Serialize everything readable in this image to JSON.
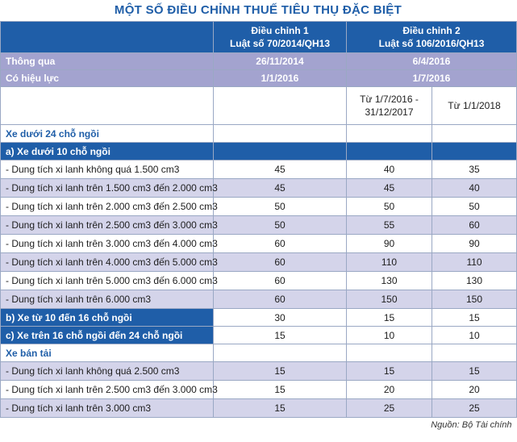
{
  "title": "MỘT SỐ ĐIỀU CHỈNH THUẾ TIÊU THỤ ĐẶC BIỆT",
  "header": {
    "adj1_line1": "Điều chỉnh 1",
    "adj1_line2": "Luật số 70/2014/QH13",
    "adj2_line1": "Điều chỉnh 2",
    "adj2_line2": "Luật số 106/2016/QH13"
  },
  "meta": [
    {
      "label": "Thông qua",
      "adj1": "26/11/2014",
      "adj2": "6/4/2016"
    },
    {
      "label": "Có hiệu lực",
      "adj1": "1/1/2016",
      "adj2": "1/7/2016"
    }
  ],
  "subheader": {
    "col2_line1": "Từ 1/7/2016 -",
    "col2_line2": "31/12/2017",
    "col3": "Từ 1/1/2018"
  },
  "sections": {
    "cars_under_24": "Xe dưới 24 chỗ ngồi",
    "cars_under_10": "a) Xe dưới 10 chỗ ngồi",
    "cars_10_16": "b) Xe từ 10 đến 16 chỗ ngồi",
    "cars_16_24": "c) Xe trên 16 chỗ ngồi đến 24 chỗ ngồi",
    "pickup": "Xe bán tải"
  },
  "rows_under_10": [
    {
      "label": "- Dung tích xi lanh không quá 1.500 cm3",
      "v1": "45",
      "v2": "40",
      "v3": "35"
    },
    {
      "label": "- Dung tích xi lanh trên 1.500 cm3 đến 2.000 cm3",
      "v1": "45",
      "v2": "45",
      "v3": "40"
    },
    {
      "label": "- Dung tích xi lanh trên 2.000 cm3 đến 2.500 cm3",
      "v1": "50",
      "v2": "50",
      "v3": "50"
    },
    {
      "label": "- Dung tích xi lanh trên 2.500 cm3 đến 3.000 cm3",
      "v1": "50",
      "v2": "55",
      "v3": "60"
    },
    {
      "label": "- Dung tích xi lanh trên 3.000 cm3 đến 4.000 cm3",
      "v1": "60",
      "v2": "90",
      "v3": "90"
    },
    {
      "label": "- Dung tích xi lanh trên 4.000 cm3 đến 5.000 cm3",
      "v1": "60",
      "v2": "110",
      "v3": "110"
    },
    {
      "label": "- Dung tích xi lanh trên 5.000 cm3 đến 6.000 cm3",
      "v1": "60",
      "v2": "130",
      "v3": "130"
    },
    {
      "label": "- Dung tích xi lanh trên 6.000 cm3",
      "v1": "60",
      "v2": "150",
      "v3": "150"
    }
  ],
  "row_10_16": {
    "v1": "30",
    "v2": "15",
    "v3": "15"
  },
  "row_16_24": {
    "v1": "15",
    "v2": "10",
    "v3": "10"
  },
  "rows_pickup": [
    {
      "label": "- Dung tích xi lanh không quá 2.500 cm3",
      "v1": "15",
      "v2": "15",
      "v3": "15"
    },
    {
      "label": "- Dung tích xi lanh trên 2.500 cm3 đến 3.000 cm3",
      "v1": "15",
      "v2": "20",
      "v3": "20"
    },
    {
      "label": "- Dung tích xi lanh trên 3.000 cm3",
      "v1": "15",
      "v2": "25",
      "v3": "25"
    }
  ],
  "source": "Nguồn: Bộ Tài chính"
}
